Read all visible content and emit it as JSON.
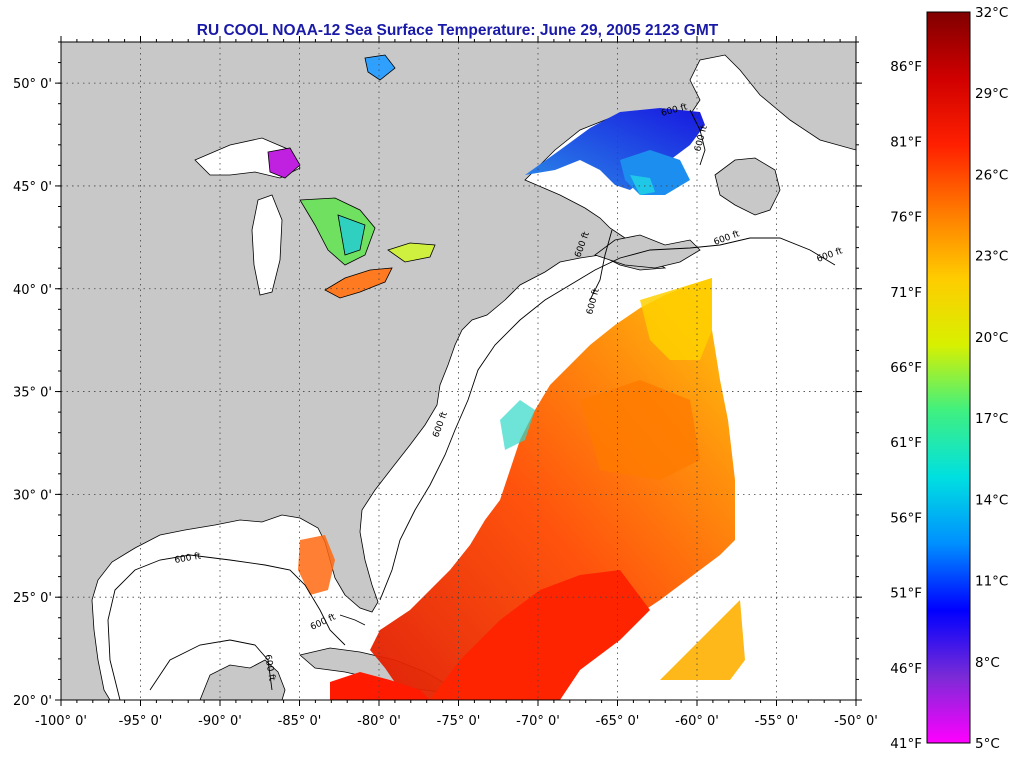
{
  "title": "RU COOL  NOAA-12  Sea Surface Temperature:  June 29, 2005 2123 GMT",
  "axes": {
    "lon_ticks": [
      "-100° 0'",
      "-95° 0'",
      "-90° 0'",
      "-85° 0'",
      "-80° 0'",
      "-75° 0'",
      "-70° 0'",
      "-65° 0'",
      "-60° 0'",
      "-55° 0'",
      "-50° 0'"
    ],
    "lat_ticks": [
      "50° 0'",
      "45° 0'",
      "40° 0'",
      "35° 0'",
      "30° 0'",
      "25° 0'",
      "20° 0'"
    ],
    "lon_range": [
      -100,
      -50
    ],
    "lat_range": [
      20,
      52
    ]
  },
  "colorbar": {
    "celsius_labels": [
      "32°C",
      "29°C",
      "26°C",
      "23°C",
      "20°C",
      "17°C",
      "14°C",
      "11°C",
      "8°C",
      "5°C"
    ],
    "fahrenheit_labels": [
      "86°F",
      "81°F",
      "76°F",
      "71°F",
      "66°F",
      "61°F",
      "56°F",
      "51°F",
      "46°F",
      "41°F"
    ],
    "celsius_range": [
      5,
      32
    ],
    "colors": [
      "#ff00ff",
      "#7a2bd6",
      "#0000ff",
      "#0090ff",
      "#00e0e0",
      "#40f080",
      "#d8f000",
      "#ffcc00",
      "#ff7a00",
      "#ff2000",
      "#d00000",
      "#800000"
    ]
  },
  "depth_contours": {
    "label": "600 ft"
  },
  "colors": {
    "land": "#c8c8c8",
    "water_no_data": "#ffffff",
    "title": "#1a1aa8"
  }
}
